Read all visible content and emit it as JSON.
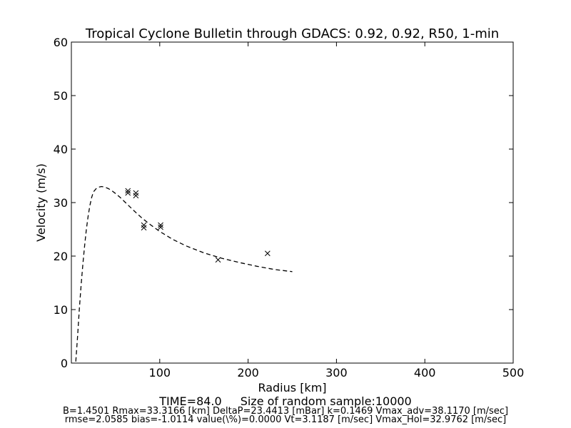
{
  "chart_data": {
    "type": "scatter",
    "title": "Tropical Cyclone Bulletin through GDACS: 0.92, 0.92, R50, 1-min",
    "xlabel": "Radius [km]",
    "ylabel": "Velocity (m/s)",
    "xlim": [
      0,
      500
    ],
    "ylim": [
      0,
      60
    ],
    "xticks": [
      100,
      200,
      300,
      400,
      500
    ],
    "xtick_labels": [
      "100",
      "200",
      "300",
      "400",
      "500"
    ],
    "yticks": [
      0,
      10,
      20,
      30,
      40,
      50,
      60
    ],
    "ytick_labels": [
      "0",
      "10",
      "20",
      "30",
      "40",
      "50",
      "60"
    ],
    "grid": false,
    "legend": "none",
    "series": [
      {
        "style": "dashed-line",
        "color": "#000000",
        "x": [
          5,
          7,
          9,
          11,
          13,
          15,
          17,
          19,
          21,
          23,
          25,
          28,
          31,
          34,
          38,
          42,
          46,
          50,
          55,
          60,
          70,
          80,
          90,
          100,
          115,
          130,
          150,
          170,
          190,
          210,
          230,
          250
        ],
        "y": [
          0.3,
          5,
          10,
          14.5,
          18.5,
          22,
          25,
          27.5,
          29.5,
          31,
          32,
          32.6,
          32.9,
          33,
          32.9,
          32.6,
          32.2,
          31.7,
          31,
          30.2,
          28.6,
          27.1,
          25.8,
          24.6,
          23.1,
          21.9,
          20.6,
          19.6,
          18.8,
          18.1,
          17.5,
          17.1
        ]
      },
      {
        "style": "x-markers",
        "color": "#000000",
        "x": [
          64,
          64,
          73,
          73,
          82,
          82,
          101,
          101,
          166,
          222
        ],
        "y": [
          32.2,
          31.8,
          31.8,
          31.3,
          25.8,
          25.3,
          25.8,
          25.4,
          19.3,
          20.5
        ]
      }
    ]
  },
  "footer": {
    "time": "TIME=84.0",
    "sample": "Size of random sample:10000",
    "params": "B=1.4501 Rmax=33.3166 [km]  DeltaP=23.4413 [mBar] k=0.1469 Vmax_adv=38.1170 [m/sec]",
    "stats": "rmse=2.0585 bias=-1.0114 value(\\%)=0.0000 Vt=3.1187 [m/sec] Vmax_Hol=32.9762 [m/sec]"
  }
}
